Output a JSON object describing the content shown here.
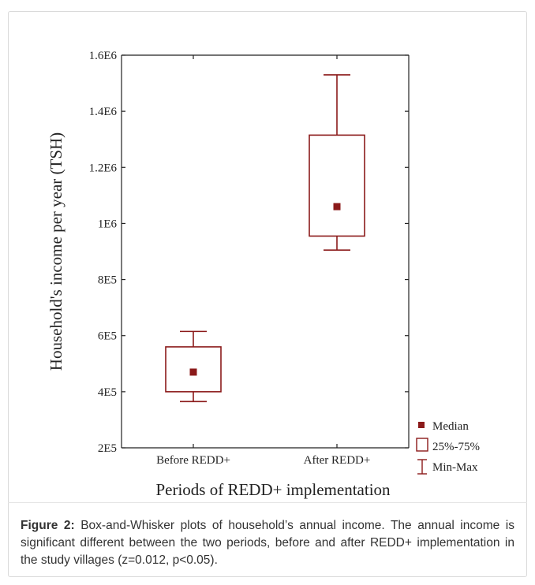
{
  "caption": {
    "label": "Figure 2:",
    "text": " Box-and-Whisker plots of household’s annual income. The annual income is significant different between the two periods, before and after REDD+ implementation in the study villages (z=0.012, p<0.05)."
  },
  "chart_data": {
    "type": "box",
    "xlabel": "Periods of REDD+ implementation",
    "ylabel": "Household's income per year (TSH)",
    "ylim": [
      200000,
      1600000
    ],
    "yticks": [
      {
        "value": 200000,
        "label": "2E5"
      },
      {
        "value": 400000,
        "label": "4E5"
      },
      {
        "value": 600000,
        "label": "6E5"
      },
      {
        "value": 800000,
        "label": "8E5"
      },
      {
        "value": 1000000,
        "label": "1E6"
      },
      {
        "value": 1200000,
        "label": "1.2E6"
      },
      {
        "value": 1400000,
        "label": "1.4E6"
      },
      {
        "value": 1600000,
        "label": "1.6E6"
      }
    ],
    "categories": [
      "Before REDD+",
      "After REDD+"
    ],
    "boxes": [
      {
        "category": "Before REDD+",
        "min": 365000,
        "q1": 400000,
        "median": 470000,
        "q3": 560000,
        "max": 615000
      },
      {
        "category": "After REDD+",
        "min": 905000,
        "q1": 955000,
        "median": 1060000,
        "q3": 1315000,
        "max": 1530000
      }
    ],
    "legend": {
      "position": "bottom-right",
      "items": [
        {
          "symbol": "median-square",
          "label": "Median"
        },
        {
          "symbol": "box",
          "label": "25%-75%"
        },
        {
          "symbol": "whisker",
          "label": "Min-Max"
        }
      ]
    },
    "color": "#8b1a1a",
    "grid": false
  }
}
